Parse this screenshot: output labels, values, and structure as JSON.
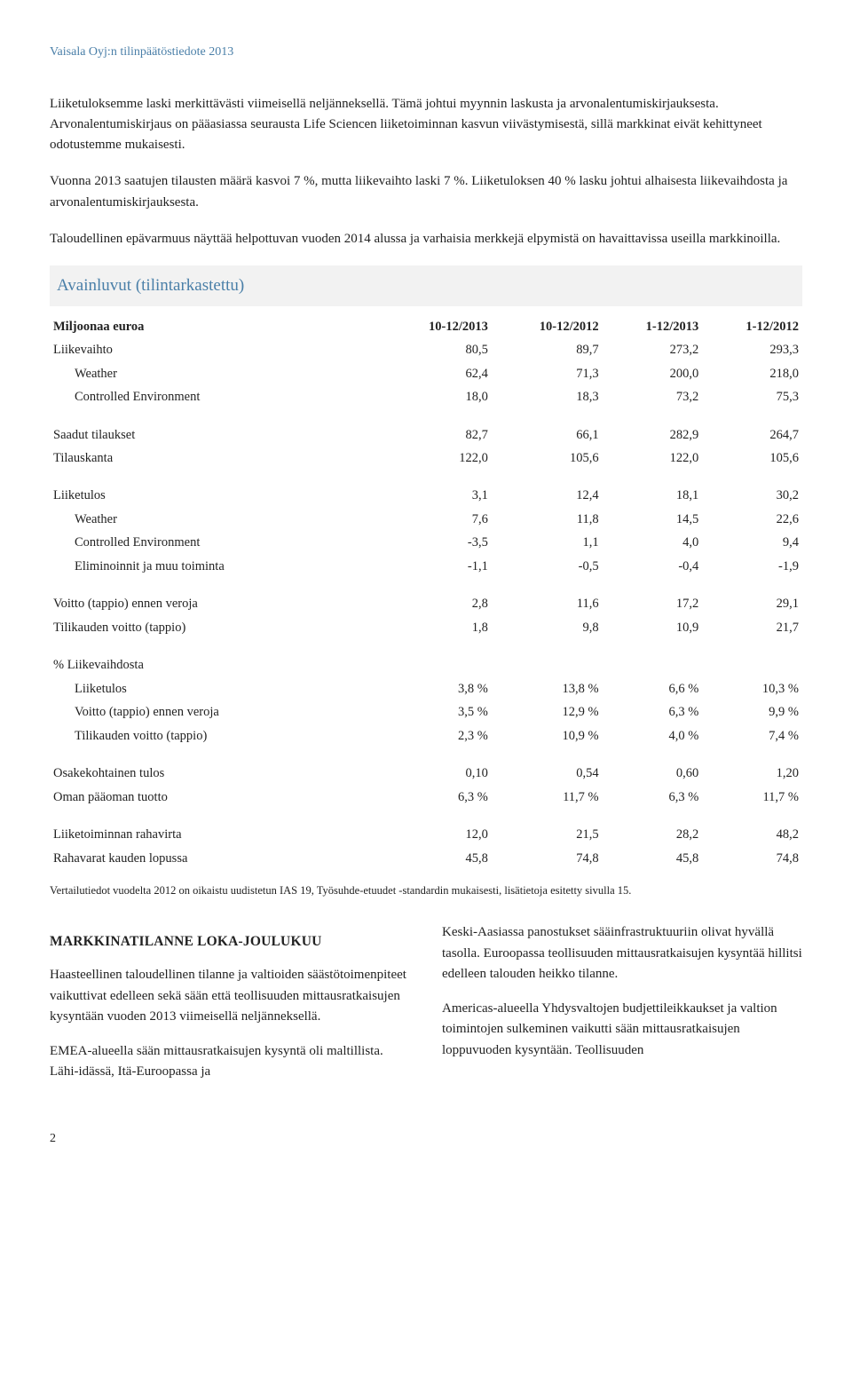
{
  "header": "Vaisala Oyj:n tilinpäätöstiedote 2013",
  "paragraphs": {
    "p1": "Liiketuloksemme laski merkittävästi viimeisellä neljänneksellä. Tämä johtui myynnin laskusta ja arvonalentumiskirjauksesta. Arvonalentumiskirjaus on pääasiassa seurausta Life Sciencen liiketoiminnan kasvun viivästymisestä, sillä markkinat eivät kehittyneet odotustemme mukaisesti.",
    "p2": "Vuonna 2013 saatujen tilausten määrä kasvoi 7 %, mutta liikevaihto laski 7 %. Liiketuloksen 40 % lasku johtui alhaisesta liikevaihdosta ja arvonalentumiskirjauksesta.",
    "p3": "Taloudellinen epävarmuus näyttää helpottuvan vuoden 2014 alussa ja varhaisia merkkejä elpymistä on havaittavissa useilla markkinoilla."
  },
  "sectionTitle": "Avainluvut (tilintarkastettu)",
  "table": {
    "head": [
      "Miljoonaa euroa",
      "10-12/2013",
      "10-12/2012",
      "1-12/2013",
      "1-12/2012"
    ],
    "groups": [
      [
        {
          "label": "Liikevaihto",
          "v": [
            "80,5",
            "89,7",
            "273,2",
            "293,3"
          ],
          "indent": false
        },
        {
          "label": "Weather",
          "v": [
            "62,4",
            "71,3",
            "200,0",
            "218,0"
          ],
          "indent": true
        },
        {
          "label": "Controlled Environment",
          "v": [
            "18,0",
            "18,3",
            "73,2",
            "75,3"
          ],
          "indent": true
        }
      ],
      [
        {
          "label": "Saadut tilaukset",
          "v": [
            "82,7",
            "66,1",
            "282,9",
            "264,7"
          ],
          "indent": false
        },
        {
          "label": "Tilauskanta",
          "v": [
            "122,0",
            "105,6",
            "122,0",
            "105,6"
          ],
          "indent": false
        }
      ],
      [
        {
          "label": "Liiketulos",
          "v": [
            "3,1",
            "12,4",
            "18,1",
            "30,2"
          ],
          "indent": false
        },
        {
          "label": "Weather",
          "v": [
            "7,6",
            "11,8",
            "14,5",
            "22,6"
          ],
          "indent": true
        },
        {
          "label": "Controlled Environment",
          "v": [
            "-3,5",
            "1,1",
            "4,0",
            "9,4"
          ],
          "indent": true
        },
        {
          "label": "Eliminoinnit ja muu toiminta",
          "v": [
            "-1,1",
            "-0,5",
            "-0,4",
            "-1,9"
          ],
          "indent": true
        }
      ],
      [
        {
          "label": "Voitto (tappio) ennen veroja",
          "v": [
            "2,8",
            "11,6",
            "17,2",
            "29,1"
          ],
          "indent": false
        },
        {
          "label": "Tilikauden voitto (tappio)",
          "v": [
            "1,8",
            "9,8",
            "10,9",
            "21,7"
          ],
          "indent": false
        }
      ],
      [
        {
          "label": "% Liikevaihdosta",
          "v": [
            "",
            "",
            "",
            ""
          ],
          "indent": false
        },
        {
          "label": "Liiketulos",
          "v": [
            "3,8 %",
            "13,8 %",
            "6,6 %",
            "10,3 %"
          ],
          "indent": true
        },
        {
          "label": "Voitto (tappio) ennen veroja",
          "v": [
            "3,5 %",
            "12,9 %",
            "6,3 %",
            "9,9 %"
          ],
          "indent": true
        },
        {
          "label": "Tilikauden voitto (tappio)",
          "v": [
            "2,3 %",
            "10,9 %",
            "4,0 %",
            "7,4 %"
          ],
          "indent": true
        }
      ],
      [
        {
          "label": "Osakekohtainen tulos",
          "v": [
            "0,10",
            "0,54",
            "0,60",
            "1,20"
          ],
          "indent": false
        },
        {
          "label": "Oman pääoman tuotto",
          "v": [
            "6,3 %",
            "11,7 %",
            "6,3 %",
            "11,7 %"
          ],
          "indent": false
        }
      ],
      [
        {
          "label": "Liiketoiminnan rahavirta",
          "v": [
            "12,0",
            "21,5",
            "28,2",
            "48,2"
          ],
          "indent": false
        },
        {
          "label": "Rahavarat kauden lopussa",
          "v": [
            "45,8",
            "74,8",
            "45,8",
            "74,8"
          ],
          "indent": false
        }
      ]
    ]
  },
  "footnote": "Vertailutiedot vuodelta 2012 on oikaistu uudistetun IAS 19, Työsuhde-etuudet -standardin mukaisesti, lisätietoja esitetty sivulla 15.",
  "market": {
    "heading": "MARKKINATILANNE LOKA-JOULUKUU",
    "left1": "Haasteellinen taloudellinen tilanne ja valtioiden säästötoimenpiteet vaikuttivat edelleen sekä sään että teollisuuden mittausratkaisujen kysyntään vuoden 2013 viimeisellä neljänneksellä.",
    "left2": "EMEA-alueella sään mittausratkaisujen kysyntä oli maltillista. Lähi-idässä, Itä-Euroopassa ja",
    "right1": "Keski-Aasiassa panostukset sääinfrastruktuuriin olivat hyvällä tasolla. Euroopassa teollisuuden mittausratkaisujen kysyntää hillitsi edelleen talouden heikko tilanne.",
    "right2": "Americas-alueella Yhdysvaltojen budjettileikkaukset ja valtion toimintojen sulkeminen vaikutti sään mittausratkaisujen loppuvuoden kysyntään. Teollisuuden"
  },
  "pageNumber": "2"
}
